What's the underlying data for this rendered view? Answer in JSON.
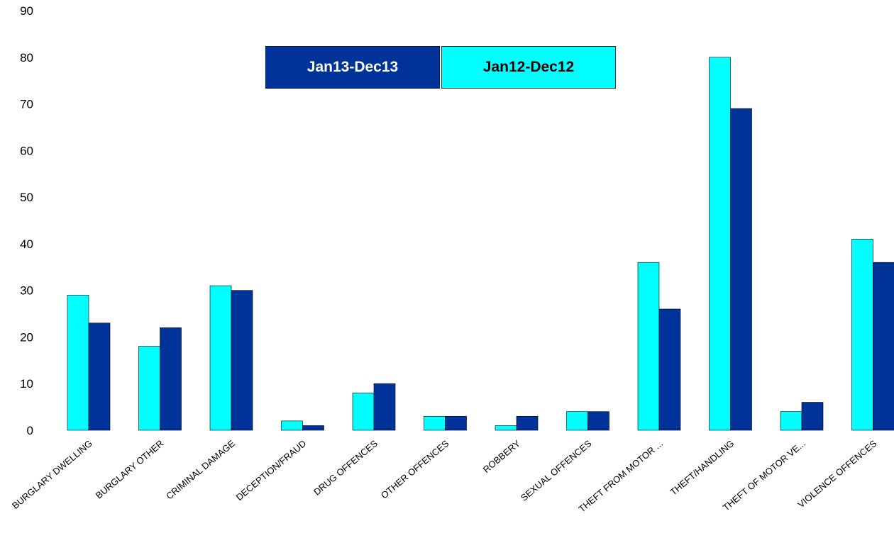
{
  "chart_data": {
    "type": "bar",
    "title": "",
    "xlabel": "",
    "ylabel": "",
    "ylim": [
      0,
      90
    ],
    "yticks": [
      0,
      10,
      20,
      30,
      40,
      50,
      60,
      70,
      80,
      90
    ],
    "grid": false,
    "legend_position": "top-center",
    "categories": [
      "BURGLARY DWELLING",
      "BURGLARY OTHER",
      "CRIMINAL DAMAGE",
      "DECEPTION/FRAUD",
      "DRUG OFFENCES",
      "OTHER OFFENCES",
      "ROBBERY",
      "SEXUAL OFFENCES",
      "THEFT FROM MOTOR ...",
      "THEFT/HANDLING",
      "THEFT OF MOTOR VE...",
      "VIOLENCE OFFENCES"
    ],
    "series": [
      {
        "name": "Jan12-Dec12",
        "color": "#00ffff",
        "values": [
          29,
          18,
          31,
          2,
          8,
          3,
          1,
          4,
          36,
          80,
          4,
          41
        ]
      },
      {
        "name": "Jan13-Dec13",
        "color": "#003399",
        "values": [
          23,
          22,
          30,
          1,
          10,
          3,
          3,
          4,
          26,
          69,
          6,
          36
        ]
      }
    ]
  },
  "legend": {
    "items": [
      {
        "label": "Jan13-Dec13",
        "color": "#003399"
      },
      {
        "label": "Jan12-Dec12",
        "color": "#00ffff"
      }
    ]
  }
}
